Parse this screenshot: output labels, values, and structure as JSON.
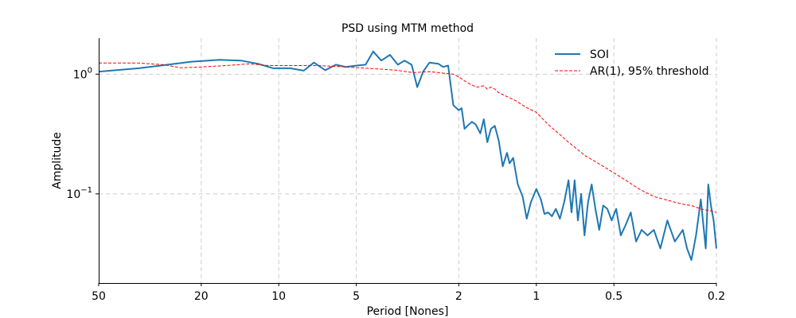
{
  "chart_data": {
    "type": "line",
    "title": "PSD using MTM method",
    "xlabel": "Period [Nones]",
    "ylabel": "Amplitude",
    "x_scale": "log",
    "x_reversed": true,
    "y_scale": "log",
    "xlim": [
      50,
      0.2
    ],
    "ylim": [
      0.018,
      2.0
    ],
    "x_ticks": [
      50,
      20,
      10,
      5,
      2,
      1,
      0.5,
      0.2
    ],
    "x_tick_labels": [
      "50",
      "20",
      "10",
      "5",
      "2",
      "1",
      "0.5",
      "0.2"
    ],
    "y_ticks": [
      1,
      0.1
    ],
    "y_tick_labels": [
      {
        "base": "10",
        "exp": "0"
      },
      {
        "base": "10",
        "exp": "−1"
      }
    ],
    "grid": true,
    "legend_position": "top-right",
    "series": [
      {
        "name": "SOI",
        "color": "#1f77b4",
        "style": "solid",
        "points": [
          [
            50,
            1.05
          ],
          [
            35,
            1.12
          ],
          [
            27,
            1.2
          ],
          [
            22,
            1.27
          ],
          [
            17,
            1.32
          ],
          [
            14,
            1.3
          ],
          [
            12,
            1.22
          ],
          [
            10.5,
            1.12
          ],
          [
            9,
            1.12
          ],
          [
            8,
            1.07
          ],
          [
            7.3,
            1.25
          ],
          [
            6.6,
            1.08
          ],
          [
            6.0,
            1.2
          ],
          [
            5.5,
            1.15
          ],
          [
            5.0,
            1.18
          ],
          [
            4.6,
            1.2
          ],
          [
            4.3,
            1.55
          ],
          [
            4.0,
            1.3
          ],
          [
            3.7,
            1.45
          ],
          [
            3.45,
            1.2
          ],
          [
            3.25,
            1.3
          ],
          [
            3.05,
            1.2
          ],
          [
            2.9,
            0.78
          ],
          [
            2.75,
            1.05
          ],
          [
            2.6,
            1.25
          ],
          [
            2.4,
            1.22
          ],
          [
            2.3,
            1.15
          ],
          [
            2.2,
            1.18
          ],
          [
            2.1,
            0.55
          ],
          [
            2.0,
            0.5
          ],
          [
            1.95,
            0.52
          ],
          [
            1.9,
            0.35
          ],
          [
            1.85,
            0.37
          ],
          [
            1.78,
            0.4
          ],
          [
            1.72,
            0.38
          ],
          [
            1.65,
            0.32
          ],
          [
            1.6,
            0.42
          ],
          [
            1.55,
            0.27
          ],
          [
            1.5,
            0.35
          ],
          [
            1.45,
            0.37
          ],
          [
            1.4,
            0.28
          ],
          [
            1.35,
            0.17
          ],
          [
            1.3,
            0.22
          ],
          [
            1.27,
            0.18
          ],
          [
            1.23,
            0.2
          ],
          [
            1.18,
            0.12
          ],
          [
            1.13,
            0.095
          ],
          [
            1.09,
            0.062
          ],
          [
            1.05,
            0.085
          ],
          [
            1.0,
            0.11
          ],
          [
            0.96,
            0.09
          ],
          [
            0.93,
            0.068
          ],
          [
            0.9,
            0.07
          ],
          [
            0.87,
            0.065
          ],
          [
            0.84,
            0.075
          ],
          [
            0.81,
            0.062
          ],
          [
            0.78,
            0.085
          ],
          [
            0.75,
            0.13
          ],
          [
            0.73,
            0.07
          ],
          [
            0.71,
            0.13
          ],
          [
            0.69,
            0.06
          ],
          [
            0.67,
            0.1
          ],
          [
            0.65,
            0.045
          ],
          [
            0.63,
            0.085
          ],
          [
            0.61,
            0.12
          ],
          [
            0.59,
            0.075
          ],
          [
            0.57,
            0.05
          ],
          [
            0.55,
            0.08
          ],
          [
            0.53,
            0.075
          ],
          [
            0.51,
            0.06
          ],
          [
            0.49,
            0.075
          ],
          [
            0.47,
            0.045
          ],
          [
            0.45,
            0.055
          ],
          [
            0.43,
            0.07
          ],
          [
            0.41,
            0.04
          ],
          [
            0.39,
            0.05
          ],
          [
            0.37,
            0.045
          ],
          [
            0.35,
            0.05
          ],
          [
            0.33,
            0.035
          ],
          [
            0.31,
            0.06
          ],
          [
            0.29,
            0.04
          ],
          [
            0.27,
            0.05
          ],
          [
            0.26,
            0.035
          ],
          [
            0.25,
            0.028
          ],
          [
            0.24,
            0.045
          ],
          [
            0.23,
            0.09
          ],
          [
            0.22,
            0.035
          ],
          [
            0.215,
            0.12
          ],
          [
            0.21,
            0.08
          ],
          [
            0.205,
            0.06
          ],
          [
            0.2,
            0.035
          ]
        ]
      },
      {
        "name": "AR(1), 95% threshold",
        "color": "#ff0000",
        "style": "dashed",
        "points": [
          [
            50,
            1.24
          ],
          [
            35,
            1.24
          ],
          [
            28,
            1.2
          ],
          [
            24,
            1.13
          ],
          [
            20,
            1.15
          ],
          [
            16,
            1.18
          ],
          [
            13,
            1.22
          ],
          [
            11,
            1.18
          ],
          [
            9,
            1.18
          ],
          [
            7,
            1.18
          ],
          [
            5.5,
            1.15
          ],
          [
            4.5,
            1.12
          ],
          [
            3.5,
            1.08
          ],
          [
            3.0,
            1.03
          ],
          [
            2.6,
            1.05
          ],
          [
            2.3,
            1.02
          ],
          [
            2.1,
            1.0
          ],
          [
            2.0,
            0.95
          ],
          [
            1.9,
            0.88
          ],
          [
            1.8,
            0.82
          ],
          [
            1.7,
            0.78
          ],
          [
            1.6,
            0.8
          ],
          [
            1.55,
            0.75
          ],
          [
            1.5,
            0.78
          ],
          [
            1.45,
            0.75
          ],
          [
            1.4,
            0.7
          ],
          [
            1.3,
            0.65
          ],
          [
            1.2,
            0.6
          ],
          [
            1.1,
            0.53
          ],
          [
            1.0,
            0.48
          ],
          [
            0.9,
            0.38
          ],
          [
            0.82,
            0.32
          ],
          [
            0.75,
            0.27
          ],
          [
            0.7,
            0.24
          ],
          [
            0.65,
            0.21
          ],
          [
            0.6,
            0.19
          ],
          [
            0.55,
            0.17
          ],
          [
            0.5,
            0.15
          ],
          [
            0.45,
            0.13
          ],
          [
            0.4,
            0.11
          ],
          [
            0.35,
            0.095
          ],
          [
            0.3,
            0.087
          ],
          [
            0.27,
            0.082
          ],
          [
            0.25,
            0.08
          ],
          [
            0.23,
            0.075
          ],
          [
            0.21,
            0.072
          ],
          [
            0.2,
            0.07
          ]
        ]
      }
    ]
  }
}
